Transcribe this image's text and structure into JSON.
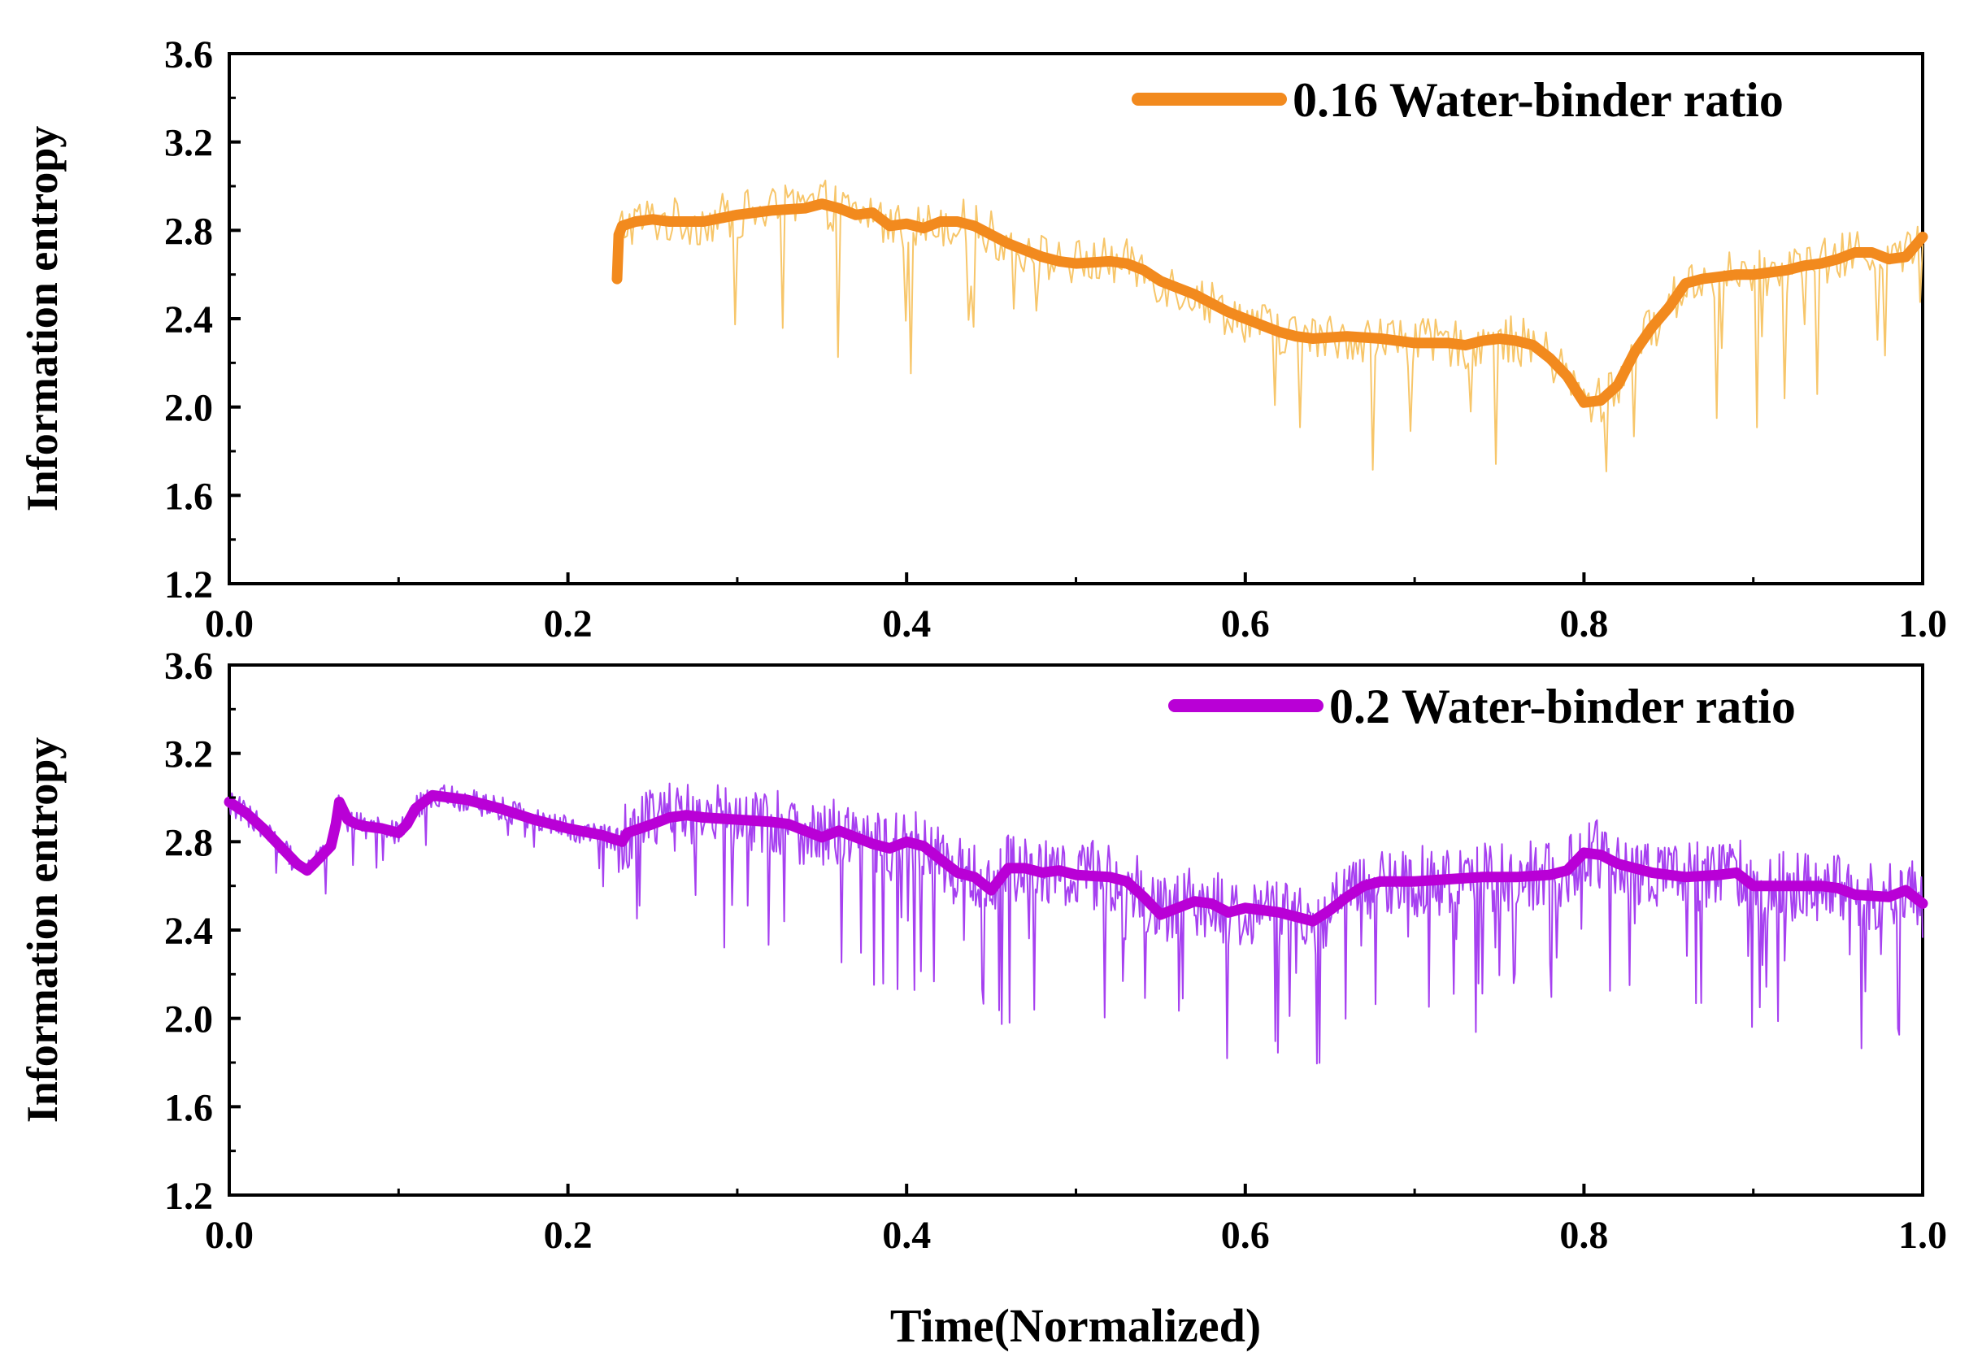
{
  "chart_data": [
    {
      "type": "line",
      "panel": "top",
      "ylabel": "Information entropy",
      "xlim": [
        0.0,
        1.0
      ],
      "ylim": [
        1.2,
        3.6
      ],
      "xticks": [
        "0.0",
        "0.2",
        "0.4",
        "0.6",
        "0.8",
        "1.0"
      ],
      "yticks": [
        "1.2",
        "1.6",
        "2.0",
        "2.4",
        "2.8",
        "3.2",
        "3.6"
      ],
      "legend": "top-right",
      "color_smooth": "#f28a1e",
      "color_raw": "#f7c66a",
      "series": [
        {
          "name": "0.16 Water-binder ratio",
          "x": [
            0.229,
            0.23,
            0.232,
            0.24,
            0.25,
            0.26,
            0.28,
            0.3,
            0.32,
            0.34,
            0.35,
            0.36,
            0.37,
            0.38,
            0.39,
            0.4,
            0.41,
            0.42,
            0.43,
            0.44,
            0.45,
            0.46,
            0.47,
            0.48,
            0.49,
            0.5,
            0.52,
            0.53,
            0.54,
            0.55,
            0.56,
            0.57,
            0.58,
            0.59,
            0.6,
            0.61,
            0.62,
            0.63,
            0.64,
            0.66,
            0.68,
            0.69,
            0.7,
            0.72,
            0.73,
            0.74,
            0.75,
            0.76,
            0.77,
            0.78,
            0.79,
            0.8,
            0.81,
            0.82,
            0.83,
            0.84,
            0.85,
            0.86,
            0.87,
            0.88,
            0.89,
            0.9,
            0.91,
            0.92,
            0.93,
            0.94,
            0.95,
            0.96,
            0.97,
            0.98,
            0.99,
            1.0
          ],
          "values": [
            2.58,
            2.78,
            2.82,
            2.84,
            2.85,
            2.84,
            2.84,
            2.87,
            2.89,
            2.9,
            2.92,
            2.9,
            2.87,
            2.88,
            2.82,
            2.83,
            2.81,
            2.84,
            2.84,
            2.82,
            2.78,
            2.74,
            2.71,
            2.68,
            2.66,
            2.65,
            2.66,
            2.65,
            2.62,
            2.57,
            2.54,
            2.51,
            2.47,
            2.43,
            2.4,
            2.37,
            2.34,
            2.32,
            2.31,
            2.32,
            2.31,
            2.3,
            2.29,
            2.29,
            2.28,
            2.3,
            2.31,
            2.3,
            2.28,
            2.22,
            2.14,
            2.02,
            2.03,
            2.1,
            2.25,
            2.36,
            2.45,
            2.56,
            2.58,
            2.59,
            2.6,
            2.6,
            2.61,
            2.62,
            2.64,
            2.65,
            2.67,
            2.7,
            2.7,
            2.67,
            2.68,
            2.77
          ]
        }
      ]
    },
    {
      "type": "line",
      "panel": "bottom",
      "ylabel": "Information entropy",
      "xlabel": "Time(Normalized)",
      "xlim": [
        0.0,
        1.0
      ],
      "ylim": [
        1.2,
        3.6
      ],
      "xticks": [
        "0.0",
        "0.2",
        "0.4",
        "0.6",
        "0.8",
        "1.0"
      ],
      "yticks": [
        "1.2",
        "1.6",
        "2.0",
        "2.4",
        "2.8",
        "3.2",
        "3.6"
      ],
      "legend": "top-right",
      "color_smooth": "#b900d6",
      "color_raw": "#a640f0",
      "series": [
        {
          "name": "0.2 Water-binder ratio",
          "x": [
            0.0,
            0.01,
            0.02,
            0.03,
            0.04,
            0.046,
            0.05,
            0.06,
            0.063,
            0.065,
            0.07,
            0.075,
            0.08,
            0.09,
            0.1,
            0.105,
            0.11,
            0.12,
            0.14,
            0.16,
            0.18,
            0.2,
            0.22,
            0.232,
            0.235,
            0.25,
            0.26,
            0.27,
            0.28,
            0.3,
            0.32,
            0.33,
            0.34,
            0.35,
            0.36,
            0.37,
            0.38,
            0.39,
            0.4,
            0.41,
            0.42,
            0.43,
            0.44,
            0.45,
            0.46,
            0.47,
            0.48,
            0.49,
            0.5,
            0.52,
            0.53,
            0.54,
            0.55,
            0.56,
            0.57,
            0.58,
            0.59,
            0.6,
            0.61,
            0.62,
            0.63,
            0.64,
            0.65,
            0.66,
            0.67,
            0.68,
            0.7,
            0.72,
            0.74,
            0.76,
            0.78,
            0.79,
            0.8,
            0.81,
            0.82,
            0.83,
            0.84,
            0.86,
            0.88,
            0.89,
            0.9,
            0.92,
            0.94,
            0.95,
            0.96,
            0.98,
            0.99,
            1.0
          ],
          "values": [
            2.98,
            2.93,
            2.86,
            2.78,
            2.7,
            2.67,
            2.7,
            2.78,
            2.88,
            2.98,
            2.9,
            2.88,
            2.87,
            2.86,
            2.84,
            2.88,
            2.95,
            3.01,
            2.99,
            2.95,
            2.9,
            2.86,
            2.83,
            2.8,
            2.84,
            2.88,
            2.91,
            2.92,
            2.91,
            2.9,
            2.89,
            2.88,
            2.85,
            2.82,
            2.85,
            2.82,
            2.79,
            2.77,
            2.8,
            2.78,
            2.72,
            2.66,
            2.64,
            2.58,
            2.68,
            2.68,
            2.66,
            2.67,
            2.65,
            2.64,
            2.62,
            2.55,
            2.47,
            2.5,
            2.53,
            2.52,
            2.48,
            2.5,
            2.49,
            2.48,
            2.46,
            2.44,
            2.49,
            2.55,
            2.6,
            2.62,
            2.62,
            2.63,
            2.64,
            2.64,
            2.65,
            2.67,
            2.75,
            2.74,
            2.7,
            2.68,
            2.66,
            2.64,
            2.65,
            2.66,
            2.6,
            2.6,
            2.6,
            2.59,
            2.56,
            2.55,
            2.58,
            2.52
          ]
        }
      ]
    }
  ]
}
